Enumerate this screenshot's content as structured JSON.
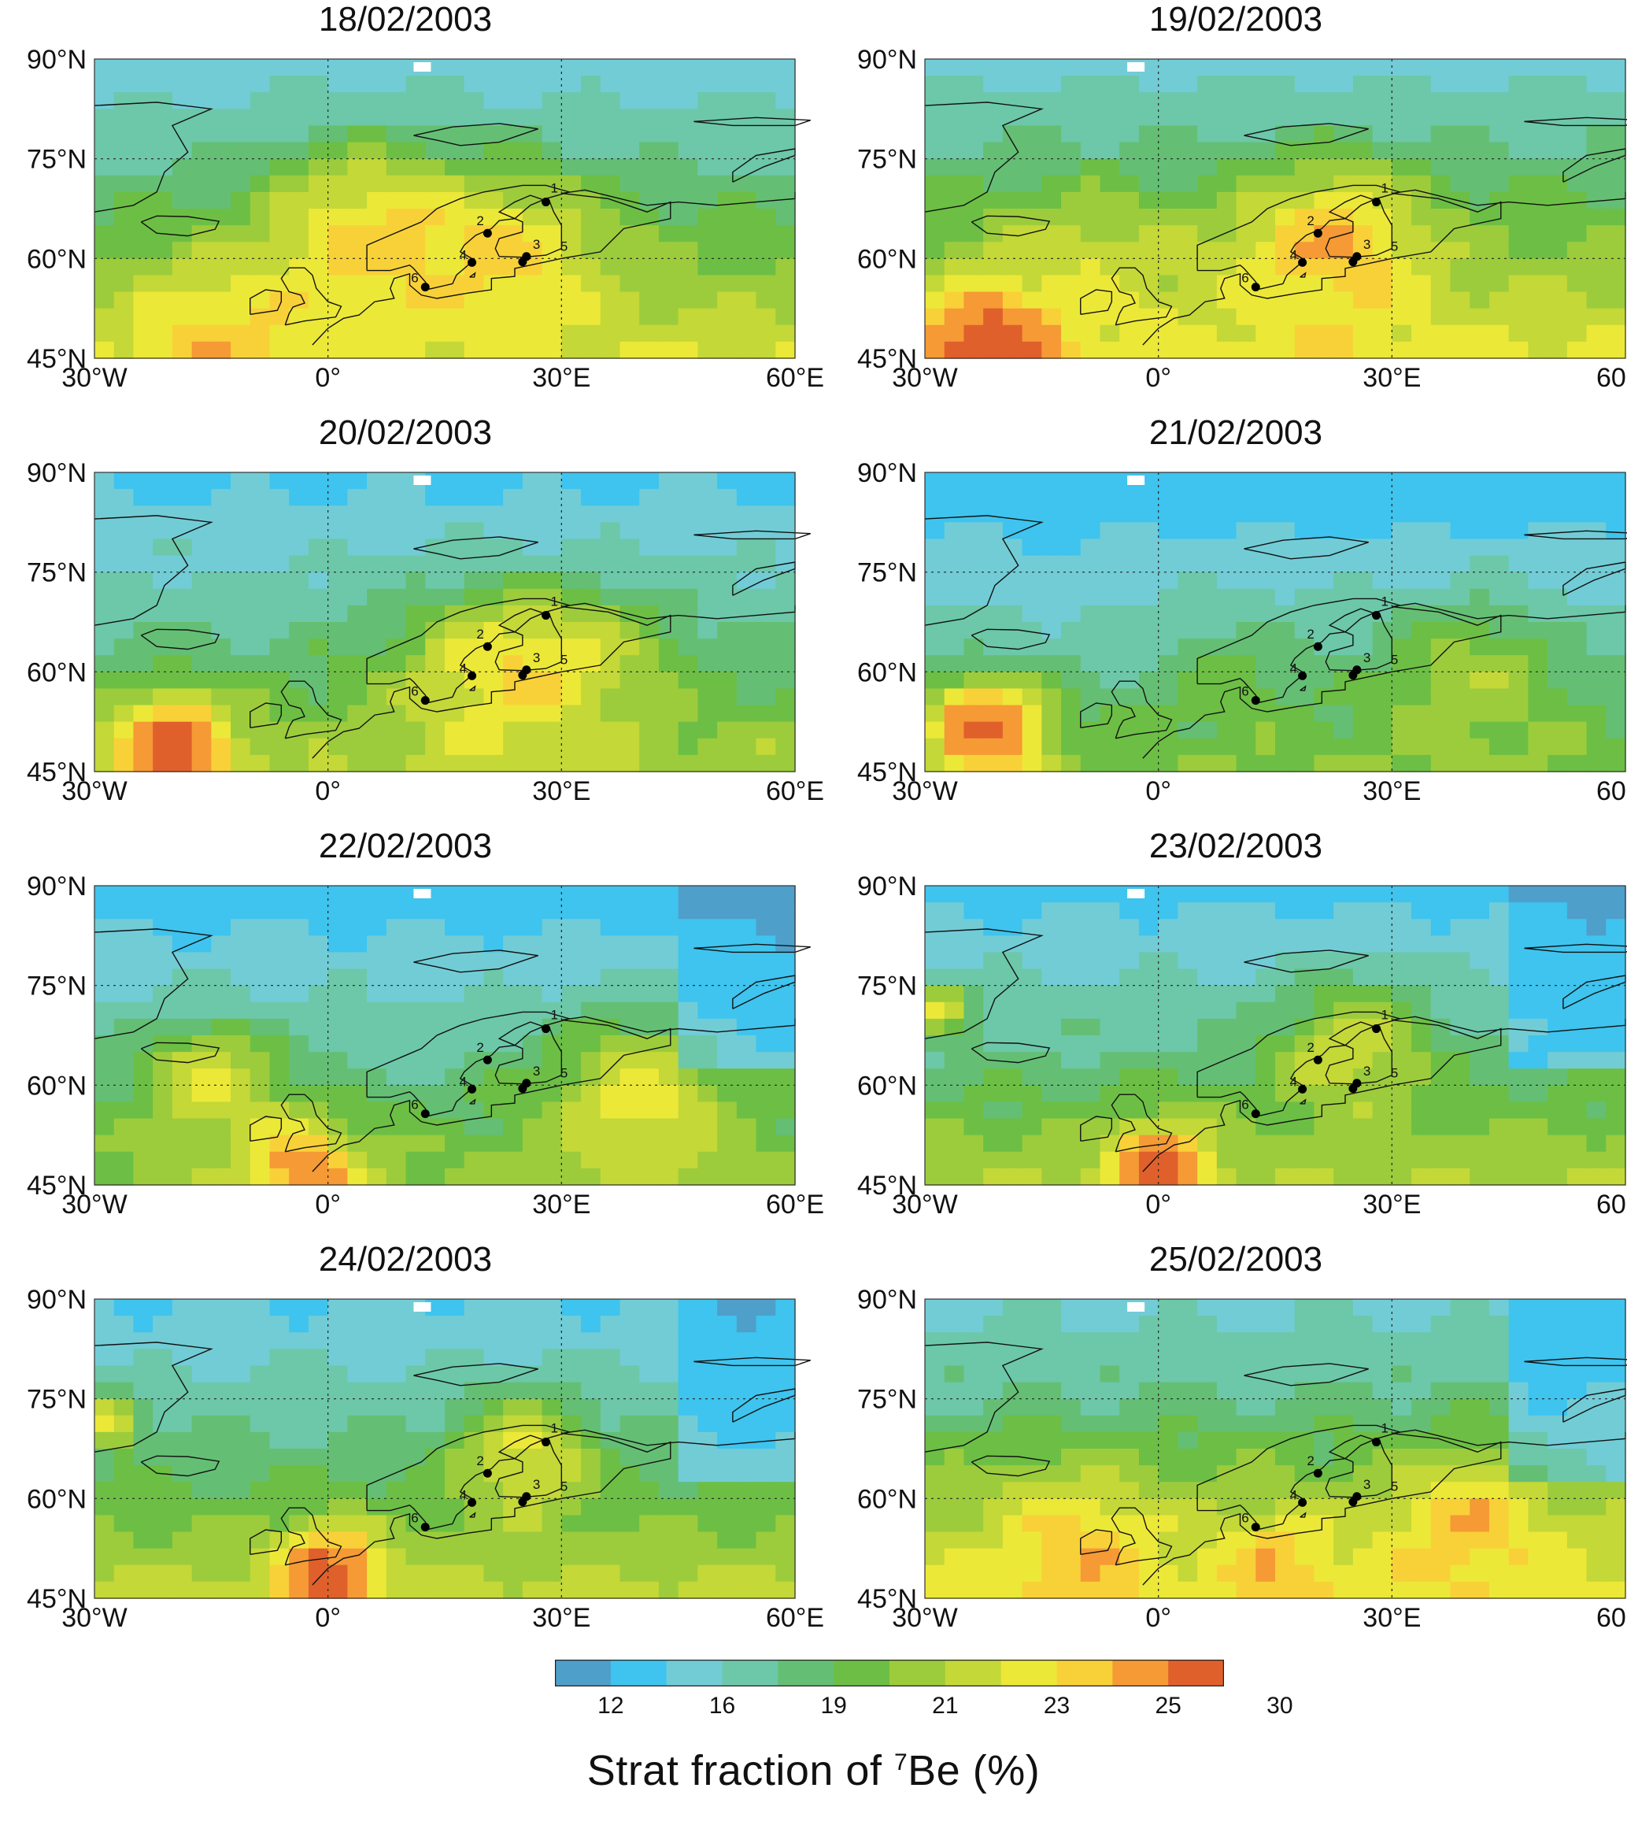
{
  "panels": [
    {
      "date": "18/02/2003",
      "variant": 0
    },
    {
      "date": "19/02/2003",
      "variant": 1
    },
    {
      "date": "20/02/2003",
      "variant": 2
    },
    {
      "date": "21/02/2003",
      "variant": 3
    },
    {
      "date": "22/02/2003",
      "variant": 4
    },
    {
      "date": "23/02/2003",
      "variant": 5
    },
    {
      "date": "24/02/2003",
      "variant": 6
    },
    {
      "date": "25/02/2003",
      "variant": 7
    }
  ],
  "axes": {
    "lat_labels": [
      "90°N",
      "75°N",
      "60°N",
      "45°N"
    ],
    "lon_labels": [
      "30°W",
      "0°",
      "30°E",
      "60°E"
    ],
    "lat_range": [
      45,
      90
    ],
    "lon_range": [
      -30,
      60
    ]
  },
  "stations": [
    {
      "id": "1",
      "lon": 28.0,
      "lat": 68.5
    },
    {
      "id": "2",
      "lon": 20.5,
      "lat": 63.8
    },
    {
      "id": "3",
      "lon": 25.5,
      "lat": 60.3
    },
    {
      "id": "4",
      "lon": 18.5,
      "lat": 59.4
    },
    {
      "id": "5",
      "lon": 25.0,
      "lat": 59.5
    },
    {
      "id": "6",
      "lon": 12.5,
      "lat": 55.7
    }
  ],
  "colorbar": {
    "tick_labels": [
      "12",
      "16",
      "19",
      "21",
      "23",
      "25",
      "30"
    ],
    "colors": [
      "#4f9fcb",
      "#3ec4ee",
      "#72ccd6",
      "#6cc8a8",
      "#64bf74",
      "#6cbf44",
      "#9ccc3c",
      "#c4d838",
      "#ece838",
      "#f8d138",
      "#f59a35",
      "#e0602c"
    ],
    "title_prefix": "Strat fraction of ",
    "title_sup": "7",
    "title_suffix": "Be (%)"
  }
}
